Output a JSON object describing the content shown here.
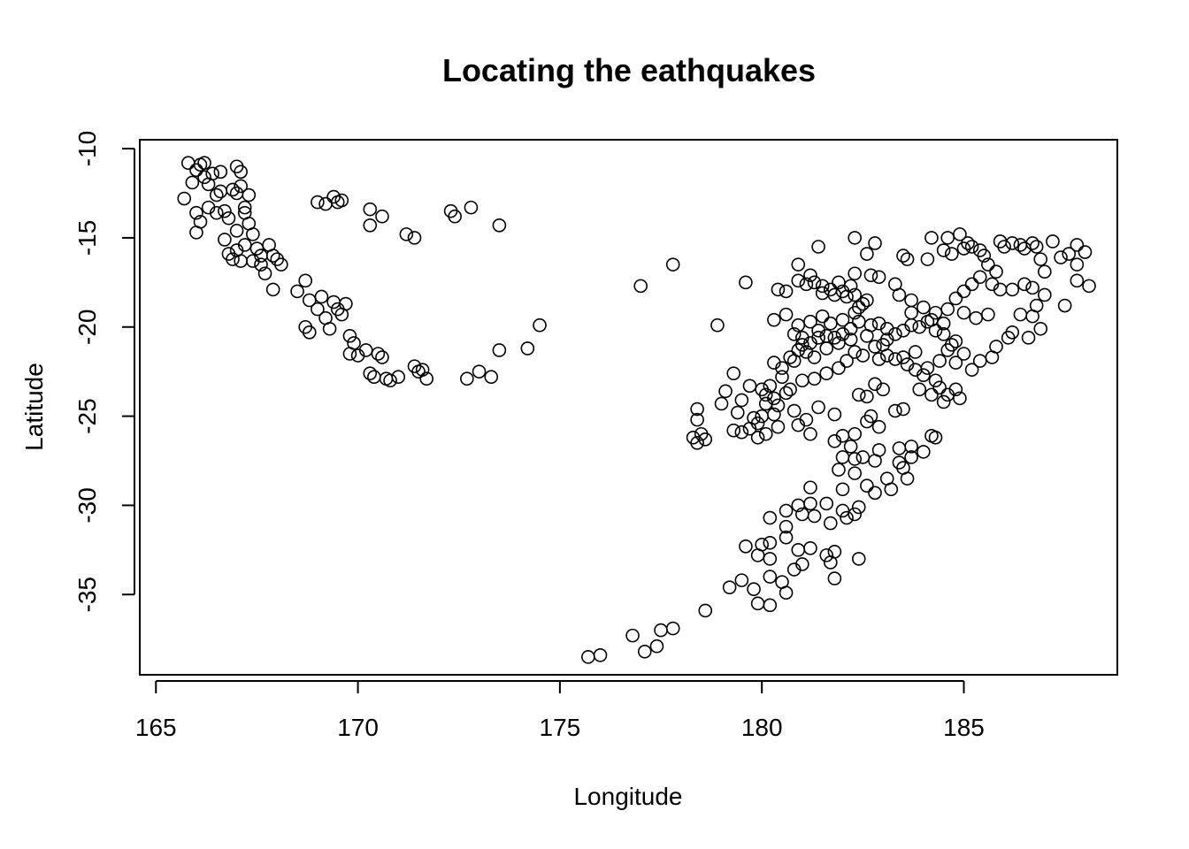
{
  "chart_data": {
    "type": "scatter",
    "title": "Locating the eathquakes",
    "xlabel": "Longitude",
    "ylabel": "Latitude",
    "xlim": [
      164.6,
      188.8
    ],
    "ylim": [
      -39.5,
      -9.5
    ],
    "xticks": [
      165,
      170,
      175,
      180,
      185
    ],
    "yticks": [
      -10,
      -15,
      -20,
      -25,
      -30,
      -35
    ],
    "grid": false,
    "legend": "none",
    "marker": "open-circle",
    "color": "#000000",
    "points": [
      [
        165.7,
        -12.8
      ],
      [
        165.8,
        -10.8
      ],
      [
        165.9,
        -11.9
      ],
      [
        166.0,
        -11.2
      ],
      [
        166.1,
        -10.9
      ],
      [
        166.2,
        -11.6
      ],
      [
        166.3,
        -12.0
      ],
      [
        166.4,
        -11.4
      ],
      [
        166.5,
        -12.6
      ],
      [
        166.6,
        -11.3
      ],
      [
        166.2,
        -10.8
      ],
      [
        166.0,
        -13.6
      ],
      [
        166.1,
        -14.1
      ],
      [
        166.0,
        -14.7
      ],
      [
        166.3,
        -13.3
      ],
      [
        166.7,
        -13.5
      ],
      [
        166.8,
        -13.9
      ],
      [
        166.6,
        -12.4
      ],
      [
        166.9,
        -12.3
      ],
      [
        167.0,
        -12.5
      ],
      [
        166.5,
        -13.6
      ],
      [
        166.7,
        -15.1
      ],
      [
        166.8,
        -15.9
      ],
      [
        166.9,
        -16.2
      ],
      [
        167.0,
        -15.7
      ],
      [
        167.1,
        -16.3
      ],
      [
        167.0,
        -14.6
      ],
      [
        167.2,
        -13.3
      ],
      [
        167.1,
        -12.1
      ],
      [
        167.0,
        -11.0
      ],
      [
        167.1,
        -11.3
      ],
      [
        167.3,
        -12.6
      ],
      [
        167.2,
        -13.6
      ],
      [
        167.3,
        -14.2
      ],
      [
        167.4,
        -14.8
      ],
      [
        167.2,
        -15.4
      ],
      [
        167.5,
        -15.6
      ],
      [
        167.6,
        -16.0
      ],
      [
        167.4,
        -16.3
      ],
      [
        167.6,
        -16.5
      ],
      [
        167.8,
        -15.4
      ],
      [
        167.9,
        -16.0
      ],
      [
        168.0,
        -16.2
      ],
      [
        168.1,
        -16.5
      ],
      [
        167.7,
        -17.0
      ],
      [
        167.9,
        -17.9
      ],
      [
        168.5,
        -18.0
      ],
      [
        168.7,
        -17.4
      ],
      [
        168.8,
        -18.5
      ],
      [
        168.7,
        -20.0
      ],
      [
        168.8,
        -20.3
      ],
      [
        169.0,
        -19.0
      ],
      [
        169.1,
        -18.3
      ],
      [
        169.2,
        -19.5
      ],
      [
        169.3,
        -20.1
      ],
      [
        169.4,
        -18.6
      ],
      [
        169.5,
        -19.0
      ],
      [
        169.6,
        -19.3
      ],
      [
        169.7,
        -18.7
      ],
      [
        169.8,
        -20.5
      ],
      [
        169.9,
        -20.9
      ],
      [
        169.8,
        -21.5
      ],
      [
        170.0,
        -21.6
      ],
      [
        170.2,
        -21.3
      ],
      [
        170.3,
        -22.6
      ],
      [
        170.4,
        -22.8
      ],
      [
        170.5,
        -21.5
      ],
      [
        170.6,
        -21.7
      ],
      [
        170.7,
        -22.9
      ],
      [
        170.8,
        -23.0
      ],
      [
        171.0,
        -22.8
      ],
      [
        171.4,
        -22.2
      ],
      [
        171.5,
        -22.5
      ],
      [
        171.6,
        -22.4
      ],
      [
        171.7,
        -22.9
      ],
      [
        169.0,
        -13.0
      ],
      [
        169.2,
        -13.1
      ],
      [
        169.4,
        -12.7
      ],
      [
        169.6,
        -12.9
      ],
      [
        169.5,
        -13.0
      ],
      [
        170.3,
        -13.4
      ],
      [
        170.3,
        -14.3
      ],
      [
        170.6,
        -13.8
      ],
      [
        171.2,
        -14.8
      ],
      [
        171.4,
        -15.0
      ],
      [
        172.3,
        -13.5
      ],
      [
        172.4,
        -13.8
      ],
      [
        172.8,
        -13.3
      ],
      [
        173.5,
        -14.3
      ],
      [
        172.7,
        -22.9
      ],
      [
        173.0,
        -22.5
      ],
      [
        173.3,
        -22.8
      ],
      [
        173.5,
        -21.3
      ],
      [
        174.2,
        -21.2
      ],
      [
        174.5,
        -19.9
      ],
      [
        177.0,
        -17.7
      ],
      [
        177.8,
        -16.5
      ],
      [
        178.9,
        -19.9
      ],
      [
        179.6,
        -17.5
      ],
      [
        178.3,
        -26.2
      ],
      [
        178.4,
        -26.5
      ],
      [
        178.5,
        -26.0
      ],
      [
        178.6,
        -26.3
      ],
      [
        178.4,
        -24.6
      ],
      [
        178.4,
        -25.2
      ],
      [
        175.7,
        -38.5
      ],
      [
        176.0,
        -38.4
      ],
      [
        176.8,
        -37.3
      ],
      [
        177.1,
        -38.2
      ],
      [
        177.4,
        -37.9
      ],
      [
        177.5,
        -37.0
      ],
      [
        177.8,
        -36.9
      ],
      [
        178.6,
        -35.9
      ],
      [
        179.2,
        -34.6
      ],
      [
        179.5,
        -34.2
      ],
      [
        179.8,
        -34.7
      ],
      [
        179.9,
        -35.5
      ],
      [
        180.2,
        -35.6
      ],
      [
        180.2,
        -34.0
      ],
      [
        180.5,
        -34.3
      ],
      [
        180.6,
        -34.9
      ],
      [
        180.8,
        -33.6
      ],
      [
        181.0,
        -33.3
      ],
      [
        180.9,
        -32.5
      ],
      [
        181.2,
        -32.4
      ],
      [
        181.6,
        -32.8
      ],
      [
        181.8,
        -32.6
      ],
      [
        181.7,
        -33.2
      ],
      [
        181.8,
        -34.1
      ],
      [
        179.6,
        -32.3
      ],
      [
        180.0,
        -32.2
      ],
      [
        180.2,
        -32.1
      ],
      [
        180.2,
        -33.0
      ],
      [
        179.9,
        -32.8
      ],
      [
        180.6,
        -31.8
      ],
      [
        180.6,
        -31.2
      ],
      [
        180.6,
        -30.3
      ],
      [
        180.9,
        -30.0
      ],
      [
        181.0,
        -30.5
      ],
      [
        181.2,
        -29.9
      ],
      [
        181.3,
        -30.6
      ],
      [
        181.2,
        -29.0
      ],
      [
        181.6,
        -29.9
      ],
      [
        181.7,
        -31.0
      ],
      [
        182.0,
        -30.3
      ],
      [
        182.3,
        -30.5
      ],
      [
        182.4,
        -30.1
      ],
      [
        182.4,
        -33.0
      ],
      [
        180.2,
        -30.7
      ],
      [
        182.0,
        -29.1
      ],
      [
        182.1,
        -30.7
      ],
      [
        182.3,
        -28.2
      ],
      [
        182.5,
        -27.3
      ],
      [
        182.3,
        -27.4
      ],
      [
        182.2,
        -26.7
      ],
      [
        182.0,
        -27.3
      ],
      [
        181.8,
        -26.4
      ],
      [
        181.9,
        -28.0
      ],
      [
        182.6,
        -28.9
      ],
      [
        182.8,
        -29.3
      ],
      [
        183.1,
        -28.5
      ],
      [
        182.8,
        -27.5
      ],
      [
        182.9,
        -26.9
      ],
      [
        183.4,
        -27.6
      ],
      [
        183.5,
        -27.9
      ],
      [
        183.6,
        -28.5
      ],
      [
        183.7,
        -27.3
      ],
      [
        183.2,
        -29.1
      ],
      [
        183.4,
        -26.8
      ],
      [
        183.7,
        -26.7
      ],
      [
        184.0,
        -27.0
      ],
      [
        184.2,
        -26.1
      ],
      [
        184.3,
        -26.2
      ],
      [
        180.0,
        -23.5
      ],
      [
        180.1,
        -23.8
      ],
      [
        180.2,
        -23.3
      ],
      [
        180.3,
        -24.0
      ],
      [
        180.1,
        -24.3
      ],
      [
        180.0,
        -25.0
      ],
      [
        179.8,
        -25.1
      ],
      [
        179.7,
        -25.7
      ],
      [
        179.5,
        -25.9
      ],
      [
        179.3,
        -25.8
      ],
      [
        179.9,
        -26.2
      ],
      [
        180.1,
        -26.0
      ],
      [
        180.4,
        -25.6
      ],
      [
        180.4,
        -24.4
      ],
      [
        180.6,
        -23.7
      ],
      [
        180.5,
        -22.3
      ],
      [
        180.3,
        -22.0
      ],
      [
        180.7,
        -21.7
      ],
      [
        180.9,
        -21.3
      ],
      [
        181.0,
        -21.0
      ],
      [
        181.2,
        -20.9
      ],
      [
        181.4,
        -20.6
      ],
      [
        181.6,
        -20.5
      ],
      [
        181.8,
        -20.6
      ],
      [
        182.0,
        -20.4
      ],
      [
        182.2,
        -20.1
      ],
      [
        182.4,
        -19.7
      ],
      [
        182.3,
        -19.2
      ],
      [
        182.5,
        -18.7
      ],
      [
        182.3,
        -18.2
      ],
      [
        182.0,
        -18.0
      ],
      [
        181.7,
        -17.9
      ],
      [
        181.5,
        -17.7
      ],
      [
        181.3,
        -17.5
      ],
      [
        181.1,
        -17.6
      ],
      [
        180.9,
        -17.4
      ],
      [
        181.2,
        -17.1
      ],
      [
        181.5,
        -18.1
      ],
      [
        181.8,
        -18.2
      ],
      [
        182.1,
        -18.3
      ],
      [
        180.4,
        -17.9
      ],
      [
        180.6,
        -18.0
      ],
      [
        180.9,
        -16.5
      ],
      [
        181.4,
        -15.5
      ],
      [
        182.3,
        -15.0
      ],
      [
        182.8,
        -15.3
      ],
      [
        182.6,
        -15.9
      ],
      [
        182.3,
        -17.0
      ],
      [
        182.7,
        -17.1
      ],
      [
        182.9,
        -17.2
      ],
      [
        183.3,
        -17.6
      ],
      [
        183.5,
        -16.0
      ],
      [
        183.6,
        -16.2
      ],
      [
        184.1,
        -16.2
      ],
      [
        184.2,
        -15.0
      ],
      [
        184.5,
        -15.7
      ],
      [
        184.6,
        -15.0
      ],
      [
        184.7,
        -15.9
      ],
      [
        184.9,
        -14.8
      ],
      [
        185.0,
        -15.6
      ],
      [
        185.1,
        -15.3
      ],
      [
        185.2,
        -15.5
      ],
      [
        185.4,
        -15.7
      ],
      [
        185.5,
        -16.0
      ],
      [
        185.6,
        -16.5
      ],
      [
        185.8,
        -16.9
      ],
      [
        185.9,
        -15.2
      ],
      [
        186.0,
        -15.5
      ],
      [
        186.2,
        -15.3
      ],
      [
        186.4,
        -15.4
      ],
      [
        186.5,
        -15.6
      ],
      [
        186.7,
        -15.3
      ],
      [
        186.8,
        -15.5
      ],
      [
        186.9,
        -16.2
      ],
      [
        187.0,
        -16.9
      ],
      [
        187.2,
        -15.2
      ],
      [
        187.4,
        -16.1
      ],
      [
        187.6,
        -15.9
      ],
      [
        187.8,
        -15.4
      ],
      [
        188.0,
        -15.8
      ],
      [
        187.8,
        -16.5
      ],
      [
        187.8,
        -17.4
      ],
      [
        188.1,
        -17.7
      ],
      [
        187.5,
        -18.8
      ],
      [
        186.8,
        -18.8
      ],
      [
        186.7,
        -19.4
      ],
      [
        186.4,
        -19.3
      ],
      [
        186.2,
        -20.3
      ],
      [
        186.1,
        -20.6
      ],
      [
        185.8,
        -21.1
      ],
      [
        185.7,
        -21.7
      ],
      [
        185.4,
        -21.9
      ],
      [
        185.2,
        -22.4
      ],
      [
        185.0,
        -21.5
      ],
      [
        184.8,
        -22.0
      ],
      [
        184.7,
        -21.0
      ],
      [
        184.5,
        -20.4
      ],
      [
        184.3,
        -20.2
      ],
      [
        184.1,
        -19.7
      ],
      [
        183.9,
        -20.0
      ],
      [
        183.7,
        -19.9
      ],
      [
        183.5,
        -20.2
      ],
      [
        183.3,
        -20.4
      ],
      [
        183.1,
        -20.1
      ],
      [
        182.9,
        -19.8
      ],
      [
        182.7,
        -19.9
      ],
      [
        182.6,
        -20.5
      ],
      [
        182.9,
        -21.8
      ],
      [
        183.1,
        -21.6
      ],
      [
        183.3,
        -21.8
      ],
      [
        183.6,
        -22.1
      ],
      [
        183.8,
        -22.4
      ],
      [
        184.0,
        -22.7
      ],
      [
        184.3,
        -23.0
      ],
      [
        184.4,
        -23.4
      ],
      [
        184.6,
        -23.8
      ],
      [
        184.8,
        -23.5
      ],
      [
        184.9,
        -24.0
      ],
      [
        184.5,
        -24.2
      ],
      [
        184.2,
        -23.8
      ],
      [
        183.9,
        -23.5
      ],
      [
        183.5,
        -24.6
      ],
      [
        183.3,
        -24.7
      ],
      [
        183.0,
        -23.5
      ],
      [
        182.8,
        -23.2
      ],
      [
        182.6,
        -23.9
      ],
      [
        182.4,
        -23.8
      ],
      [
        182.7,
        -25.0
      ],
      [
        182.9,
        -25.6
      ],
      [
        182.6,
        -25.3
      ],
      [
        182.3,
        -26.0
      ],
      [
        182.0,
        -26.1
      ],
      [
        181.8,
        -24.9
      ],
      [
        181.4,
        -24.5
      ],
      [
        181.1,
        -25.2
      ],
      [
        180.9,
        -25.5
      ],
      [
        181.2,
        -26.0
      ],
      [
        180.8,
        -24.7
      ],
      [
        180.7,
        -23.5
      ],
      [
        181.0,
        -23.0
      ],
      [
        181.3,
        -22.9
      ],
      [
        181.6,
        -22.6
      ],
      [
        181.9,
        -22.3
      ],
      [
        182.1,
        -21.9
      ],
      [
        182.3,
        -21.4
      ],
      [
        182.5,
        -21.6
      ],
      [
        182.8,
        -21.1
      ],
      [
        183.0,
        -21.0
      ],
      [
        183.4,
        -18.2
      ],
      [
        183.7,
        -18.5
      ],
      [
        184.0,
        -18.9
      ],
      [
        184.3,
        -19.2
      ],
      [
        184.6,
        -19.0
      ],
      [
        184.8,
        -18.4
      ],
      [
        185.0,
        -18.0
      ],
      [
        185.2,
        -17.6
      ],
      [
        185.4,
        -17.2
      ],
      [
        185.7,
        -17.6
      ],
      [
        185.9,
        -17.9
      ],
      [
        186.2,
        -17.9
      ],
      [
        186.5,
        -17.6
      ],
      [
        186.7,
        -17.8
      ],
      [
        187.0,
        -18.2
      ],
      [
        186.6,
        -20.6
      ],
      [
        186.9,
        -20.1
      ],
      [
        185.6,
        -19.3
      ],
      [
        185.3,
        -19.5
      ],
      [
        185.0,
        -19.2
      ],
      [
        184.8,
        -20.8
      ],
      [
        184.6,
        -21.3
      ],
      [
        184.4,
        -21.9
      ],
      [
        184.1,
        -22.3
      ],
      [
        183.8,
        -21.4
      ],
      [
        183.5,
        -21.7
      ],
      [
        183.1,
        -20.7
      ],
      [
        179.0,
        -24.3
      ],
      [
        179.1,
        -23.6
      ],
      [
        179.3,
        -22.6
      ],
      [
        179.4,
        -24.8
      ],
      [
        179.5,
        -24.1
      ],
      [
        179.7,
        -23.3
      ],
      [
        179.9,
        -25.4
      ],
      [
        180.3,
        -24.9
      ],
      [
        180.5,
        -22.8
      ],
      [
        180.8,
        -21.9
      ],
      [
        181.1,
        -21.4
      ],
      [
        181.3,
        -21.7
      ],
      [
        181.6,
        -21.2
      ],
      [
        181.9,
        -20.9
      ],
      [
        182.2,
        -20.7
      ],
      [
        181.5,
        -19.4
      ],
      [
        181.2,
        -19.7
      ],
      [
        180.9,
        -19.9
      ],
      [
        180.6,
        -19.3
      ],
      [
        180.3,
        -19.6
      ],
      [
        180.8,
        -20.4
      ],
      [
        181.0,
        -20.6
      ],
      [
        181.4,
        -20.2
      ],
      [
        181.7,
        -19.8
      ],
      [
        182.0,
        -19.6
      ],
      [
        182.4,
        -18.9
      ],
      [
        182.6,
        -18.5
      ],
      [
        182.2,
        -17.7
      ],
      [
        181.9,
        -17.5
      ],
      [
        183.7,
        -19.2
      ],
      [
        184.2,
        -19.6
      ],
      [
        184.5,
        -19.8
      ]
    ]
  }
}
